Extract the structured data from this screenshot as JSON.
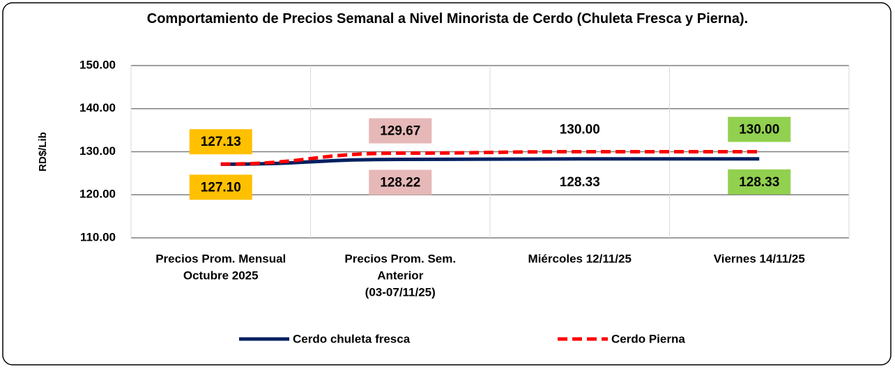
{
  "chart_data": {
    "type": "line",
    "title": "Comportamiento de Precios Semanal a Nivel Minorista de Cerdo (Chuleta Fresca y Pierna).",
    "y_label": "RD$/Lib",
    "categories": [
      [
        "Precios Prom. Mensual",
        "Octubre 2025"
      ],
      [
        "Precios Prom. Sem.",
        "Anterior",
        "(03-07/11/25)"
      ],
      [
        "Miércoles 12/11/25"
      ],
      [
        "Viernes 14/11/25"
      ]
    ],
    "series": [
      {
        "name": "Cerdo chuleta fresca",
        "color": "#002060",
        "dashed": false,
        "label_position": "below",
        "values": [
          127.1,
          128.22,
          128.33,
          128.33
        ],
        "value_labels": [
          "127.10",
          "128.22",
          "128.33",
          "128.33"
        ]
      },
      {
        "name": "Cerdo Pierna",
        "color": "#ff0000",
        "dashed": true,
        "label_position": "above",
        "values": [
          127.13,
          129.67,
          130,
          130
        ],
        "value_labels": [
          "127.13",
          "129.67",
          "130.00",
          "130.00"
        ]
      }
    ],
    "label_colors": [
      "#ffc000",
      "#e6b8b7",
      null,
      "#92d050"
    ],
    "ylim": [
      110,
      150
    ],
    "yticks": [
      {
        "value": 110,
        "label": "110.00"
      },
      {
        "value": 120,
        "label": "120.00"
      },
      {
        "value": 130,
        "label": "130.00"
      },
      {
        "value": 140,
        "label": "140.00"
      },
      {
        "value": 150,
        "label": "150.00"
      }
    ],
    "grid": true,
    "legend": "bottom"
  }
}
